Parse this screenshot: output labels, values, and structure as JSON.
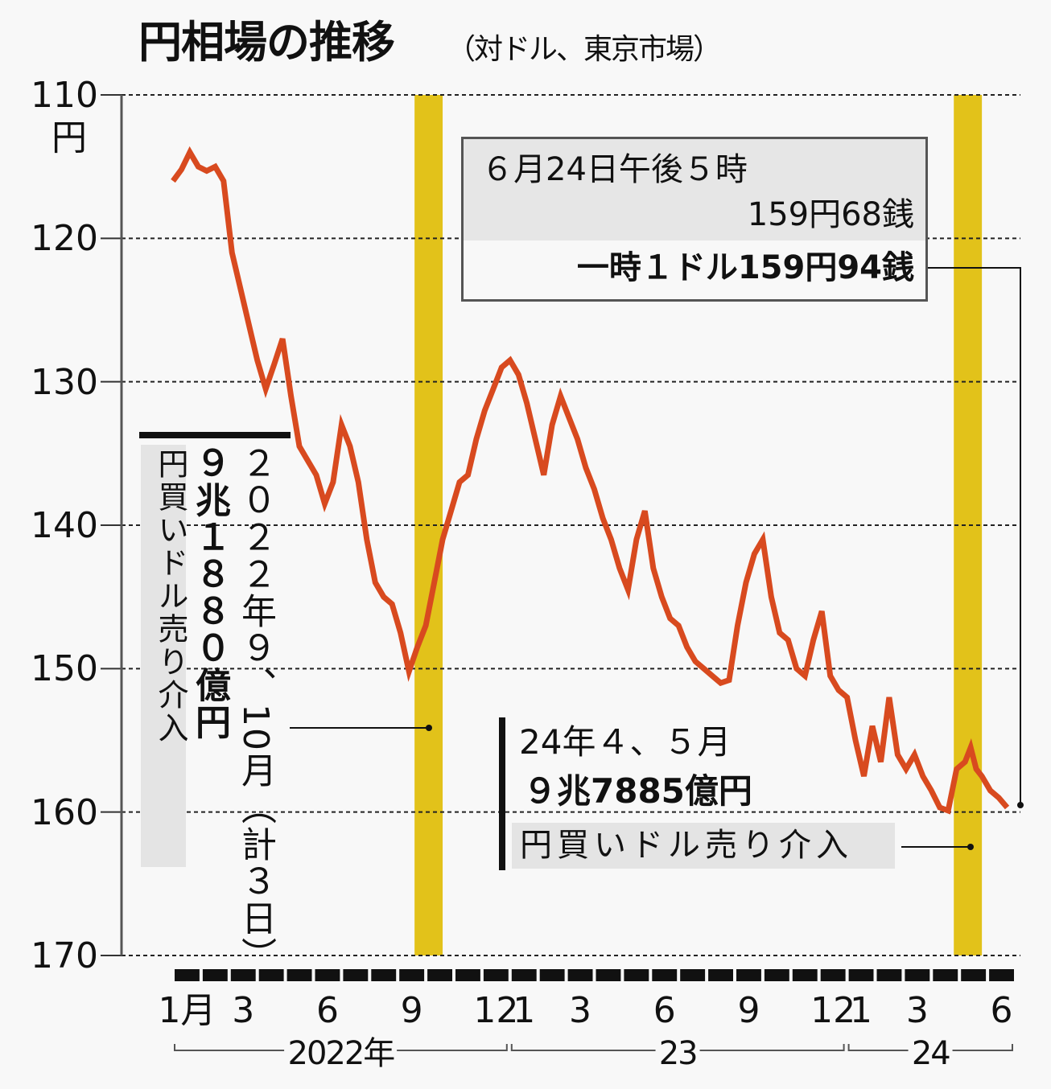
{
  "header": {
    "title": "円相場の推移",
    "subtitle": "（対ドル、東京市場）"
  },
  "y_axis": {
    "ticks": [
      "110",
      "120",
      "130",
      "140",
      "150",
      "160",
      "170"
    ],
    "unit": "円"
  },
  "x_axis": {
    "month_labels": [
      {
        "label": "1月",
        "month_index": 0
      },
      {
        "label": "3",
        "month_index": 2
      },
      {
        "label": "6",
        "month_index": 5
      },
      {
        "label": "9",
        "month_index": 8
      },
      {
        "label": "12",
        "month_index": 11
      },
      {
        "label": "1",
        "month_index": 12
      },
      {
        "label": "3",
        "month_index": 14
      },
      {
        "label": "6",
        "month_index": 17
      },
      {
        "label": "9",
        "month_index": 20
      },
      {
        "label": "12",
        "month_index": 23
      },
      {
        "label": "1",
        "month_index": 24
      },
      {
        "label": "3",
        "month_index": 26
      },
      {
        "label": "6",
        "month_index": 29
      }
    ],
    "years": [
      {
        "label": "2022年",
        "start": 0,
        "end": 11
      },
      {
        "label": "23",
        "start": 12,
        "end": 23
      },
      {
        "label": "24",
        "start": 24,
        "end": 29
      }
    ]
  },
  "callout_latest": {
    "line1": "６月24日午後５時",
    "line2": "159円68銭",
    "line3": "一時１ドル159円94銭"
  },
  "intervention_2022": {
    "date": "２０２２年９、10月（計３日）",
    "amount": "９兆１８８０億円",
    "label": "円買いドル売り介入"
  },
  "intervention_2024": {
    "date": "24年４、５月",
    "amount": "９兆7885億円",
    "label": "円買いドル売り介入"
  },
  "colors": {
    "line": "#d84a1f",
    "band": "#e2c21a",
    "grid": "#222222"
  },
  "chart_data": {
    "type": "line",
    "title": "円相場の推移",
    "subtitle": "（対ドル、東京市場）",
    "xlabel": "",
    "ylabel": "円",
    "ylim": [
      170,
      110
    ],
    "y_inverted": true,
    "grid": true,
    "x_range": [
      "2022-01",
      "2024-06"
    ],
    "highlight_bands": [
      {
        "label": "2022年9、10月 介入",
        "from_month": 8.6,
        "to_month": 9.6
      },
      {
        "label": "24年4、5月 介入",
        "from_month": 27.8,
        "to_month": 28.8
      }
    ],
    "series": [
      {
        "name": "円/ドル",
        "x": [
          0.0,
          0.3,
          0.6,
          0.9,
          1.2,
          1.5,
          1.8,
          2.1,
          2.4,
          2.7,
          3.0,
          3.3,
          3.6,
          3.9,
          4.2,
          4.5,
          4.8,
          5.1,
          5.4,
          5.7,
          6.0,
          6.3,
          6.6,
          6.9,
          7.2,
          7.5,
          7.8,
          8.1,
          8.4,
          8.7,
          9.0,
          9.3,
          9.6,
          9.9,
          10.2,
          10.5,
          10.8,
          11.1,
          11.4,
          11.7,
          12.0,
          12.3,
          12.6,
          12.9,
          13.2,
          13.5,
          13.8,
          14.1,
          14.4,
          14.7,
          15.0,
          15.3,
          15.6,
          15.9,
          16.2,
          16.5,
          16.8,
          17.1,
          17.4,
          17.7,
          18.0,
          18.3,
          18.6,
          18.9,
          19.2,
          19.5,
          19.8,
          20.1,
          20.4,
          20.7,
          21.0,
          21.3,
          21.6,
          21.9,
          22.2,
          22.5,
          22.8,
          23.1,
          23.4,
          23.7,
          24.0,
          24.3,
          24.6,
          24.9,
          25.2,
          25.5,
          25.8,
          26.1,
          26.4,
          26.7,
          27.0,
          27.3,
          27.6,
          27.9,
          28.2,
          28.4,
          28.6,
          28.8,
          29.1,
          29.4,
          29.7
        ],
        "values": [
          116.0,
          115.2,
          114.0,
          115.0,
          115.3,
          115.0,
          116.0,
          121.0,
          123.5,
          126.0,
          128.5,
          130.5,
          128.8,
          127.0,
          131.0,
          134.5,
          135.5,
          136.5,
          138.5,
          137.0,
          133.0,
          134.5,
          137.0,
          141.0,
          144.0,
          145.0,
          145.5,
          147.5,
          150.2,
          148.5,
          147.0,
          144.0,
          141.0,
          139.0,
          137.0,
          136.5,
          134.0,
          132.0,
          130.5,
          129.0,
          128.5,
          129.5,
          131.5,
          134.0,
          136.5,
          133.0,
          131.0,
          132.5,
          134.0,
          136.0,
          137.5,
          139.5,
          141.0,
          143.0,
          144.5,
          141.0,
          139.0,
          143.0,
          145.0,
          146.5,
          147.0,
          148.5,
          149.5,
          150.0,
          150.5,
          151.0,
          150.8,
          147.0,
          144.0,
          142.0,
          141.0,
          145.0,
          147.5,
          148.0,
          150.0,
          150.5,
          148.0,
          146.0,
          150.5,
          151.5,
          152.0,
          155.0,
          157.5,
          154.0,
          156.5,
          152.0,
          156.0,
          157.0,
          156.0,
          157.5,
          158.5,
          159.68,
          159.9,
          157.0,
          156.5,
          155.5,
          157.0,
          157.5,
          158.5,
          159.0,
          159.68
        ]
      }
    ],
    "annotations": [
      "６月24日午後５時 159円68銭",
      "一時１ドル159円94銭",
      "２０２２年９、10月（計３日） ９兆１８８０億円 円買いドル売り介入",
      "24年４、５月 ９兆7885億円 円買いドル売り介入"
    ]
  }
}
